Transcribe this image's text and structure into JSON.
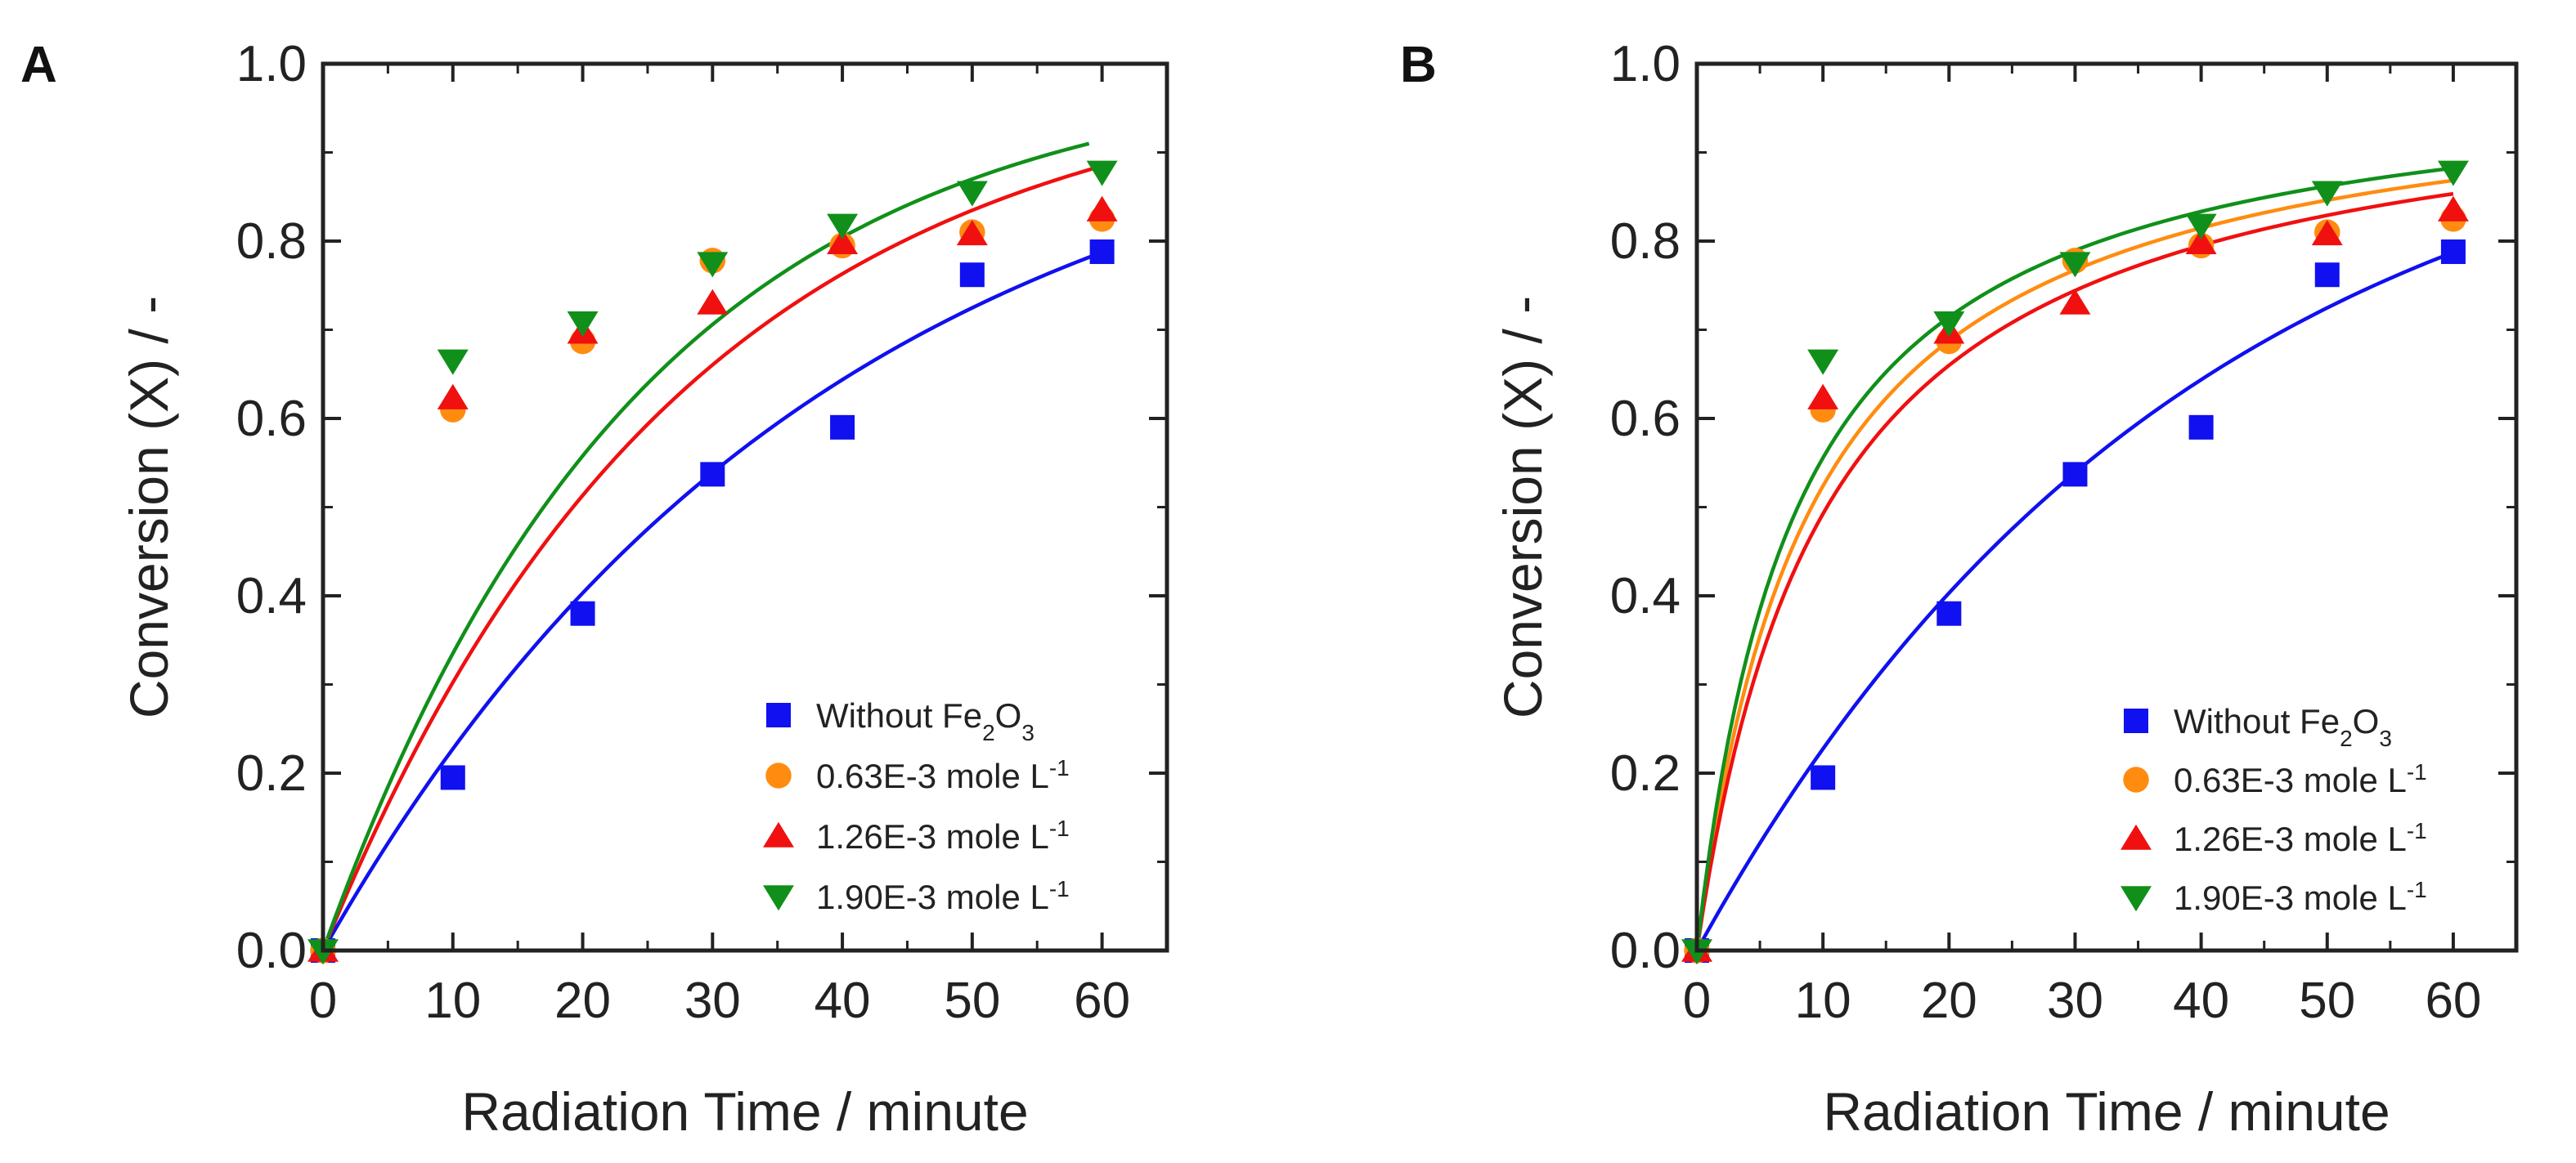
{
  "colors": {
    "without_fe2o3": "#1010f0",
    "c063": "#ff8c10",
    "c126": "#f01010",
    "c190": "#10901a",
    "axis": "#222222"
  },
  "chart_data": [
    {
      "panel": "A",
      "type": "scatter",
      "xlabel": "Radiation Time / minute",
      "ylabel": "Conversion (X) / -",
      "xlim": [
        0,
        65
      ],
      "ylim": [
        0.0,
        1.0
      ],
      "xticks": [
        "0",
        "10",
        "20",
        "30",
        "40",
        "50",
        "60"
      ],
      "yticks": [
        "0.0",
        "0.2",
        "0.4",
        "0.6",
        "0.8",
        "1.0"
      ],
      "grid": false,
      "legend_position": "bottom-right",
      "series": [
        {
          "name": "Without Fe2O3",
          "label_main": "Without Fe",
          "label_sub": "2",
          "label_mid": "O",
          "label_sub2": "3",
          "label_sup": "",
          "marker": "square",
          "color": "#1010f0",
          "x": [
            0,
            10,
            20,
            30,
            40,
            50,
            60
          ],
          "y": [
            0.0,
            0.195,
            0.38,
            0.537,
            0.59,
            0.762,
            0.788
          ],
          "fit": {
            "form": "first-order",
            "k": 0.0258,
            "xmax": 60
          }
        },
        {
          "name": "0.63E-3 mole L-1",
          "label_main": "0.63E-3 mole L",
          "label_sub": "",
          "label_mid": "",
          "label_sub2": "",
          "label_sup": "-1",
          "marker": "circle",
          "color": "#ff8c10",
          "x": [
            0,
            10,
            20,
            30,
            40,
            50,
            60
          ],
          "y": [
            0.0,
            0.61,
            0.687,
            0.778,
            0.795,
            0.81,
            0.825
          ]
        },
        {
          "name": "1.26E-3 mole L-1",
          "label_main": "1.26E-3 mole L",
          "label_sub": "",
          "label_mid": "",
          "label_sub2": "",
          "label_sup": "-1",
          "marker": "triangle-up",
          "color": "#f01010",
          "x": [
            0,
            10,
            20,
            30,
            40,
            50,
            60
          ],
          "y": [
            0.0,
            0.623,
            0.697,
            0.73,
            0.798,
            0.808,
            0.835
          ],
          "fit": {
            "form": "first-order",
            "k": 0.036,
            "xmax": 60
          }
        },
        {
          "name": "1.90E-3 mole L-1",
          "label_main": "1.90E-3 mole L",
          "label_sub": "",
          "label_mid": "",
          "label_sub2": "",
          "label_sup": "-1",
          "marker": "triangle-down",
          "color": "#10901a",
          "x": [
            0,
            10,
            20,
            30,
            40,
            50,
            60
          ],
          "y": [
            0.0,
            0.665,
            0.708,
            0.775,
            0.818,
            0.855,
            0.878
          ],
          "fit": {
            "form": "first-order",
            "k": 0.0408,
            "xmax": 59
          }
        }
      ]
    },
    {
      "panel": "B",
      "type": "scatter",
      "xlabel": "Radiation Time / minute",
      "ylabel": "Conversion (X) / -",
      "xlim": [
        0,
        65
      ],
      "ylim": [
        0.0,
        1.0
      ],
      "xticks": [
        "0",
        "10",
        "20",
        "30",
        "40",
        "50",
        "60"
      ],
      "yticks": [
        "0.0",
        "0.2",
        "0.4",
        "0.6",
        "0.8",
        "1.0"
      ],
      "grid": false,
      "legend_position": "bottom-right",
      "series": [
        {
          "name": "Without Fe2O3",
          "label_main": "Without Fe",
          "label_sub": "2",
          "label_mid": "O",
          "label_sub2": "3",
          "label_sup": "",
          "marker": "square",
          "color": "#1010f0",
          "x": [
            0,
            10,
            20,
            30,
            40,
            50,
            60
          ],
          "y": [
            0.0,
            0.195,
            0.38,
            0.537,
            0.59,
            0.762,
            0.788
          ],
          "fit": {
            "form": "first-order",
            "k": 0.0258,
            "xmax": 60
          }
        },
        {
          "name": "0.63E-3 mole L-1",
          "label_main": "0.63E-3 mole L",
          "label_sub": "",
          "label_mid": "",
          "label_sub2": "",
          "label_sup": "-1",
          "marker": "circle",
          "color": "#ff8c10",
          "x": [
            0,
            10,
            20,
            30,
            40,
            50,
            60
          ],
          "y": [
            0.0,
            0.61,
            0.687,
            0.778,
            0.795,
            0.81,
            0.825
          ],
          "fit": {
            "form": "second-order",
            "k": 0.11,
            "xmax": 60
          }
        },
        {
          "name": "1.26E-3 mole L-1",
          "label_main": "1.26E-3 mole L",
          "label_sub": "",
          "label_mid": "",
          "label_sub2": "",
          "label_sup": "-1",
          "marker": "triangle-up",
          "color": "#f01010",
          "x": [
            0,
            10,
            20,
            30,
            40,
            50,
            60
          ],
          "y": [
            0.0,
            0.623,
            0.697,
            0.73,
            0.798,
            0.808,
            0.835
          ],
          "fit": {
            "form": "second-order",
            "k": 0.097,
            "xmax": 60
          }
        },
        {
          "name": "1.90E-3 mole L-1",
          "label_main": "1.90E-3 mole L",
          "label_sub": "",
          "label_mid": "",
          "label_sub2": "",
          "label_sup": "-1",
          "marker": "triangle-down",
          "color": "#10901a",
          "x": [
            0,
            10,
            20,
            30,
            40,
            50,
            60
          ],
          "y": [
            0.0,
            0.665,
            0.708,
            0.775,
            0.818,
            0.855,
            0.878
          ],
          "fit": {
            "form": "second-order",
            "k": 0.125,
            "xmax": 60
          }
        }
      ]
    }
  ]
}
